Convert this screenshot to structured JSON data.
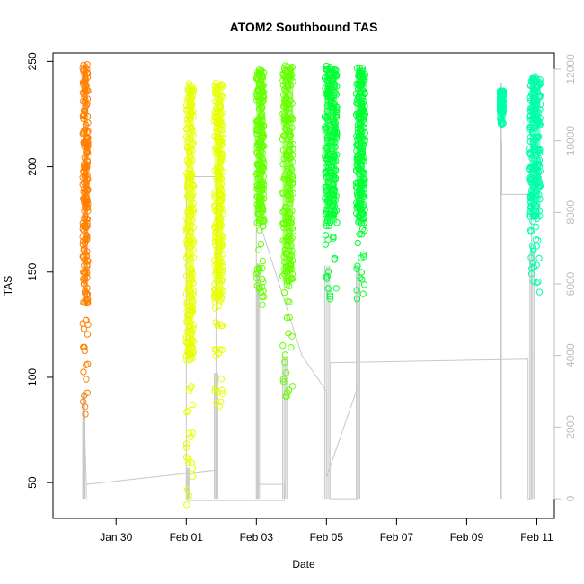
{
  "chart_data": {
    "type": "scatter",
    "title": "ATOM2 Southbound TAS",
    "xlabel": "Date",
    "ylabel": "TAS",
    "x_ticks": [
      "Jan 30",
      "Feb 01",
      "Feb 03",
      "Feb 05",
      "Feb 07",
      "Feb 09",
      "Feb 11"
    ],
    "x_tick_days": [
      30,
      32,
      34,
      36,
      38,
      40,
      42
    ],
    "xlim_days": [
      28.2,
      42.5
    ],
    "ylim": [
      33,
      254
    ],
    "y_ticks": [
      50,
      100,
      150,
      200,
      250
    ],
    "y2lim": [
      -550,
      12450
    ],
    "y2_ticks": [
      0,
      2000,
      4000,
      6000,
      8000,
      10000,
      12000
    ],
    "series": [
      {
        "color": "#ff8000",
        "day_start": 29.05,
        "day_end": 29.2,
        "tas_min": 73,
        "tas_max": 249
      },
      {
        "color": "#e6ff00",
        "day_start": 32.0,
        "day_end": 32.22,
        "tas_min": 37,
        "tas_max": 240
      },
      {
        "color": "#e6ff00",
        "day_start": 32.8,
        "day_end": 33.05,
        "tas_min": 82,
        "tas_max": 240
      },
      {
        "color": "#66ff00",
        "day_start": 34.0,
        "day_end": 34.22,
        "tas_min": 134,
        "tas_max": 246
      },
      {
        "color": "#66ff00",
        "day_start": 34.75,
        "day_end": 35.05,
        "tas_min": 90,
        "tas_max": 248
      },
      {
        "color": "#00ff33",
        "day_start": 35.95,
        "day_end": 36.3,
        "tas_min": 133,
        "tas_max": 248
      },
      {
        "color": "#00ff33",
        "day_start": 36.85,
        "day_end": 37.1,
        "tas_min": 133,
        "tas_max": 247
      },
      {
        "color": "#00ffaa",
        "day_start": 40.95,
        "day_end": 41.05,
        "tas_min": 220,
        "tas_max": 236
      },
      {
        "color": "#00ffaa",
        "day_start": 41.8,
        "day_end": 42.1,
        "tas_min": 140,
        "tas_max": 243
      }
    ],
    "altitude_series": {
      "color": "#c8c8c8",
      "points": [
        [
          29.05,
          8
        ],
        [
          29.05,
          2000
        ],
        [
          29.1,
          2000
        ],
        [
          29.15,
          400
        ],
        [
          29.15,
          0
        ],
        [
          29.15,
          400
        ],
        [
          32.85,
          800
        ],
        [
          32.85,
          0
        ],
        [
          32.85,
          9000
        ],
        [
          32.0,
          9000
        ],
        [
          32.0,
          0
        ],
        [
          32.05,
          0
        ],
        [
          32.05,
          -50
        ],
        [
          34.8,
          -50
        ],
        [
          34.8,
          400
        ],
        [
          34.0,
          400
        ],
        [
          34.0,
          0
        ],
        [
          34.0,
          8000
        ],
        [
          35.3,
          4000
        ],
        [
          36.0,
          3000
        ],
        [
          36.0,
          600
        ],
        [
          36.85,
          3000
        ],
        [
          36.9,
          3200
        ],
        [
          36.9,
          0
        ],
        [
          36.1,
          0
        ],
        [
          36.1,
          3200
        ],
        [
          36.1,
          3800
        ],
        [
          41.75,
          3900
        ],
        [
          41.75,
          0
        ],
        [
          41.85,
          0
        ],
        [
          41.85,
          8500
        ],
        [
          41.0,
          8500
        ],
        [
          41.0,
          10000
        ]
      ]
    },
    "grid": false,
    "legend": "none"
  }
}
